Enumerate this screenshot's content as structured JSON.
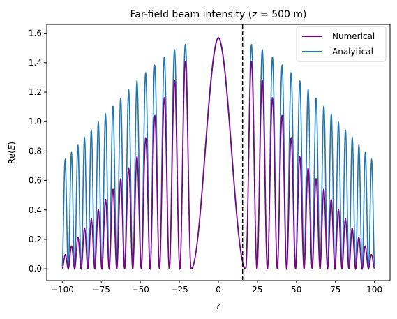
{
  "chart_data": {
    "type": "line",
    "title": "Far-field beam intensity (z = 500 m)",
    "title_parts": {
      "prefix": "Far-field beam intensity (",
      "var": "z",
      "suffix": " = 500 m)"
    },
    "xlabel": "r",
    "ylabel": "Re(E)",
    "ylabel_parts": {
      "prefix": "Re(",
      "var": "E",
      "suffix": ")"
    },
    "xlim": [
      -110,
      110
    ],
    "ylim": [
      -0.08,
      1.66
    ],
    "xticks": [
      -100,
      -75,
      -50,
      -25,
      0,
      25,
      50,
      75,
      100
    ],
    "xtick_labels": [
      "−100",
      "−75",
      "−50",
      "−25",
      "0",
      "25",
      "50",
      "75",
      "100"
    ],
    "yticks": [
      0.0,
      0.2,
      0.4,
      0.6,
      0.8,
      1.0,
      1.2,
      1.4,
      1.6
    ],
    "ytick_labels": [
      "0.0",
      "0.2",
      "0.4",
      "0.6",
      "0.8",
      "1.0",
      "1.2",
      "1.4",
      "1.6"
    ],
    "grid": false,
    "legend_position": "top-right",
    "vline": {
      "x": 15.5,
      "style": "dashed",
      "color": "#000000"
    },
    "series": [
      {
        "name": "Numerical",
        "color": "#800080",
        "peaks": [
          {
            "r": 0,
            "y": 1.57
          },
          {
            "r": 22.5,
            "y": 1.4
          },
          {
            "r": 31,
            "y": 1.22
          },
          {
            "r": 38.5,
            "y": 1.1
          },
          {
            "r": 45,
            "y": 0.93
          },
          {
            "r": 51,
            "y": 0.78
          },
          {
            "r": 100,
            "y": 0.07
          }
        ]
      },
      {
        "name": "Analytical",
        "color": "#1f77b4",
        "peaks": [
          {
            "r": 0,
            "y": 1.57
          },
          {
            "r": 22.5,
            "y": 1.52
          },
          {
            "r": 31,
            "y": 1.47
          },
          {
            "r": 50,
            "y": 1.3
          },
          {
            "r": 75,
            "y": 1.02
          },
          {
            "r": 100,
            "y": 0.72
          }
        ]
      }
    ]
  }
}
